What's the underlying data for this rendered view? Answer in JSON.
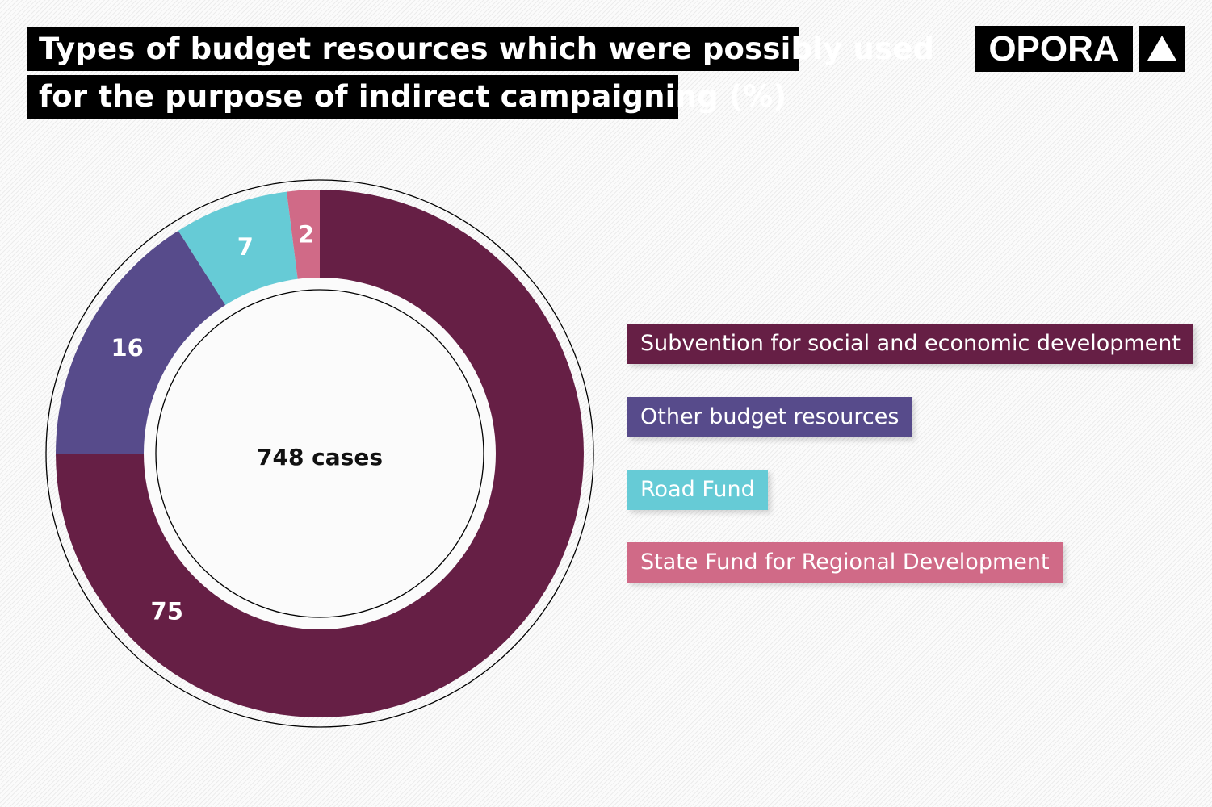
{
  "chart_data": {
    "type": "pie",
    "variant": "donut",
    "title": "Types of budget resources which were possibly used for the purpose of indirect campaigning (%)",
    "title_lines": [
      "Types of budget resources which were possibly used",
      "for the purpose of indirect campaigning (%)"
    ],
    "center_label": "748 cases",
    "categories": [
      "Subvention for social and economic development",
      "Other budget resources",
      "Road Fund",
      "State Fund for Regional Development"
    ],
    "values": [
      75,
      16,
      7,
      2
    ],
    "colors": [
      "#661f45",
      "#574b8b",
      "#66cbd6",
      "#d06a87"
    ],
    "legend_position": "right"
  },
  "logo": {
    "text": "OPORA",
    "icon": "triangle-up-icon"
  }
}
